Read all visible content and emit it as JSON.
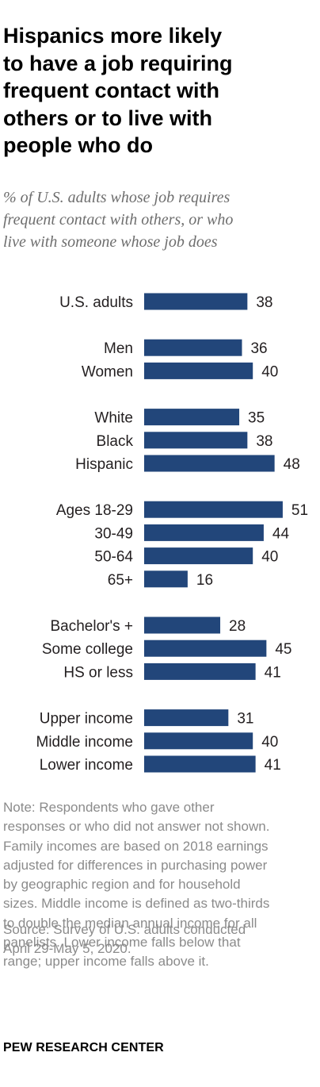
{
  "title": "Hispanics more likely\nto have a job requiring\nfrequent contact with\nothers or to live with\npeople who do",
  "subtitle": "% of U.S. adults whose job requires\nfrequent contact with others, or who\nlive with someone whose job does",
  "note": "Note: Respondents who gave other\nresponses or who did not answer not shown.\nFamily incomes are based on 2018 earnings\nadjusted for differences in purchasing power\nby geographic region and for household\nsizes. Middle income is defined as two-thirds\nto double the median annual income for all\npanelists. Lower income falls below that\nrange; upper income falls above it.",
  "source": "Source: Survey of U.S. adults conducted\nApril 29-May 5, 2020.",
  "brand": "PEW RESEARCH CENTER",
  "colors": {
    "bar": "#22467a",
    "text": "#231f20",
    "note": "#8b8b8b",
    "subtitle": "#6e6e6e"
  },
  "chart_data": {
    "type": "bar",
    "orientation": "horizontal",
    "title": "Hispanics more likely to have a job requiring frequent contact with others or to live with people who do",
    "subtitle": "% of U.S. adults whose job requires frequent contact with others, or who live with someone whose job does",
    "groups": [
      {
        "categories": [
          "U.S. adults"
        ],
        "values": [
          38
        ]
      },
      {
        "categories": [
          "Men",
          "Women"
        ],
        "values": [
          36,
          40
        ]
      },
      {
        "categories": [
          "White",
          "Black",
          "Hispanic"
        ],
        "values": [
          35,
          38,
          48
        ]
      },
      {
        "categories": [
          "Ages 18-29",
          "30-49",
          "50-64",
          "65+"
        ],
        "values": [
          51,
          44,
          40,
          16
        ]
      },
      {
        "categories": [
          "Bachelor's +",
          "Some college",
          "HS or less"
        ],
        "values": [
          28,
          45,
          41
        ]
      },
      {
        "categories": [
          "Upper income",
          "Middle income",
          "Lower income"
        ],
        "values": [
          31,
          40,
          41
        ]
      }
    ],
    "xlim": [
      0,
      51
    ],
    "grid": false,
    "legend": "none",
    "data_labels": true
  }
}
